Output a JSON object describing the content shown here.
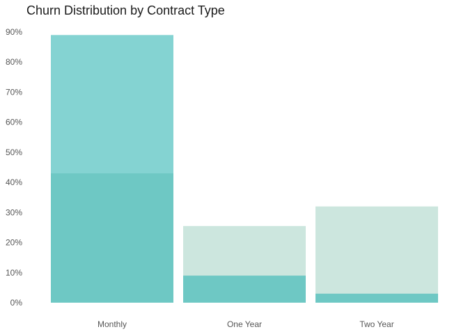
{
  "chart_data": {
    "type": "bar",
    "title": "Churn Distribution by Contract Type",
    "categories": [
      "Monthly",
      "One Year",
      "Two Year"
    ],
    "series": [
      {
        "values": [
          89,
          25.5,
          32
        ],
        "color": "#84d3d2"
      },
      {
        "values": [
          43,
          9,
          3
        ],
        "color": "#6ec8c4"
      }
    ],
    "muted_color": "#cce6de",
    "ylim": [
      0,
      90
    ],
    "yticks": [
      0,
      10,
      20,
      30,
      40,
      50,
      60,
      70,
      80,
      90
    ],
    "ytick_labels": [
      "0%",
      "10%",
      "20%",
      "30%",
      "40%",
      "50%",
      "60%",
      "70%",
      "80%",
      "90%"
    ],
    "xlabel": "",
    "ylabel": "",
    "grid": false,
    "legend": "none"
  }
}
